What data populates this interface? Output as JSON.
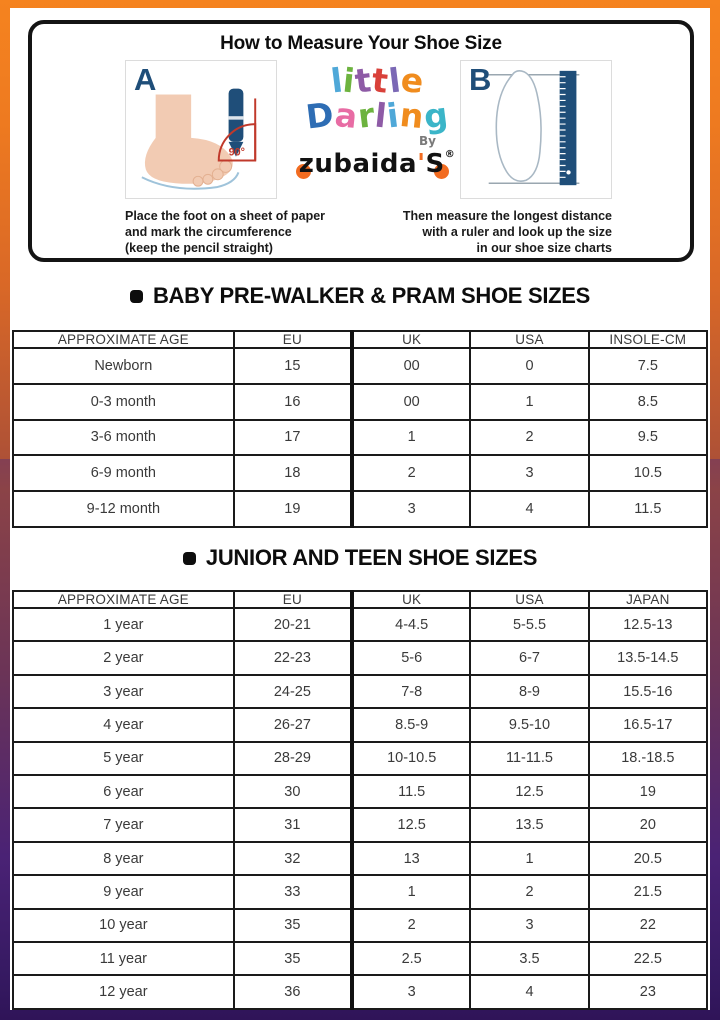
{
  "measure_card": {
    "title": "How to Measure Your Shoe Size",
    "label_a": "A",
    "label_b": "B",
    "angle_label": "90°",
    "caption_a_lines": [
      "Place the foot on a sheet of paper",
      "and mark the circumference",
      "(keep the pencil straight)"
    ],
    "caption_b_lines": [
      "Then measure the longest distance",
      "with a ruler and look up the size",
      "in our shoe size charts"
    ]
  },
  "logo": {
    "word1_letters": [
      {
        "ch": "l",
        "color": "#4FA8D8"
      },
      {
        "ch": "i",
        "color": "#6DB33F"
      },
      {
        "ch": "t",
        "color": "#8E5BA6"
      },
      {
        "ch": "t",
        "color": "#D9413A"
      },
      {
        "ch": "l",
        "color": "#7B68B5"
      },
      {
        "ch": "e",
        "color": "#F08C1E"
      }
    ],
    "word2_letters": [
      {
        "ch": "D",
        "color": "#2E6DB4"
      },
      {
        "ch": "a",
        "color": "#E86CA4"
      },
      {
        "ch": "r",
        "color": "#6DB33F"
      },
      {
        "ch": "l",
        "color": "#8E5BA6"
      },
      {
        "ch": "i",
        "color": "#4FA8D8"
      },
      {
        "ch": "n",
        "color": "#F08C1E"
      },
      {
        "ch": "g",
        "color": "#3BB5C8"
      }
    ],
    "by_label": "By",
    "brand_prefix": "zubaida",
    "brand_apostrophe": "'",
    "brand_suffix": "S",
    "registered_mark": "®"
  },
  "sections": [
    {
      "title": "BABY PRE-WALKER & PRAM SHOE SIZES",
      "columns": [
        "APPROXIMATE AGE",
        "EU",
        "UK",
        "USA",
        "INSOLE-CM"
      ],
      "rows": [
        [
          "Newborn",
          "15",
          "00",
          "0",
          "7.5"
        ],
        [
          "0-3 month",
          "16",
          "00",
          "1",
          "8.5"
        ],
        [
          "3-6 month",
          "17",
          "1",
          "2",
          "9.5"
        ],
        [
          "6-9 month",
          "18",
          "2",
          "3",
          "10.5"
        ],
        [
          "9-12 month",
          "19",
          "3",
          "4",
          "11.5"
        ]
      ]
    },
    {
      "title": "JUNIOR AND TEEN SHOE SIZES",
      "columns": [
        "APPROXIMATE AGE",
        "EU",
        "UK",
        "USA",
        "JAPAN"
      ],
      "rows": [
        [
          "1 year",
          "20-21",
          "4-4.5",
          "5-5.5",
          "12.5-13"
        ],
        [
          "2 year",
          "22-23",
          "5-6",
          "6-7",
          "13.5-14.5"
        ],
        [
          "3 year",
          "24-25",
          "7-8",
          "8-9",
          "15.5-16"
        ],
        [
          "4 year",
          "26-27",
          "8.5-9",
          "9.5-10",
          "16.5-17"
        ],
        [
          "5 year",
          "28-29",
          "10-10.5",
          "11-11.5",
          "18.-18.5"
        ],
        [
          "6 year",
          "30",
          "11.5",
          "12.5",
          "19"
        ],
        [
          "7 year",
          "31",
          "12.5",
          "13.5",
          "20"
        ],
        [
          "8 year",
          "32",
          "13",
          "1",
          "20.5"
        ],
        [
          "9 year",
          "33",
          "1",
          "2",
          "21.5"
        ],
        [
          "10 year",
          "35",
          "2",
          "3",
          "22"
        ],
        [
          "11 year",
          "35",
          "2.5",
          "3.5",
          "22.5"
        ],
        [
          "12 year",
          "36",
          "3",
          "4",
          "23"
        ]
      ]
    }
  ],
  "colors": {
    "frame_gradient_top": "#F5831F",
    "frame_gradient_bottom": "#2F1458",
    "illustration_navy": "#1F4E79",
    "angle_red": "#C0392B",
    "brand_orange": "#F26C21",
    "table_border": "#1A1A1A"
  }
}
